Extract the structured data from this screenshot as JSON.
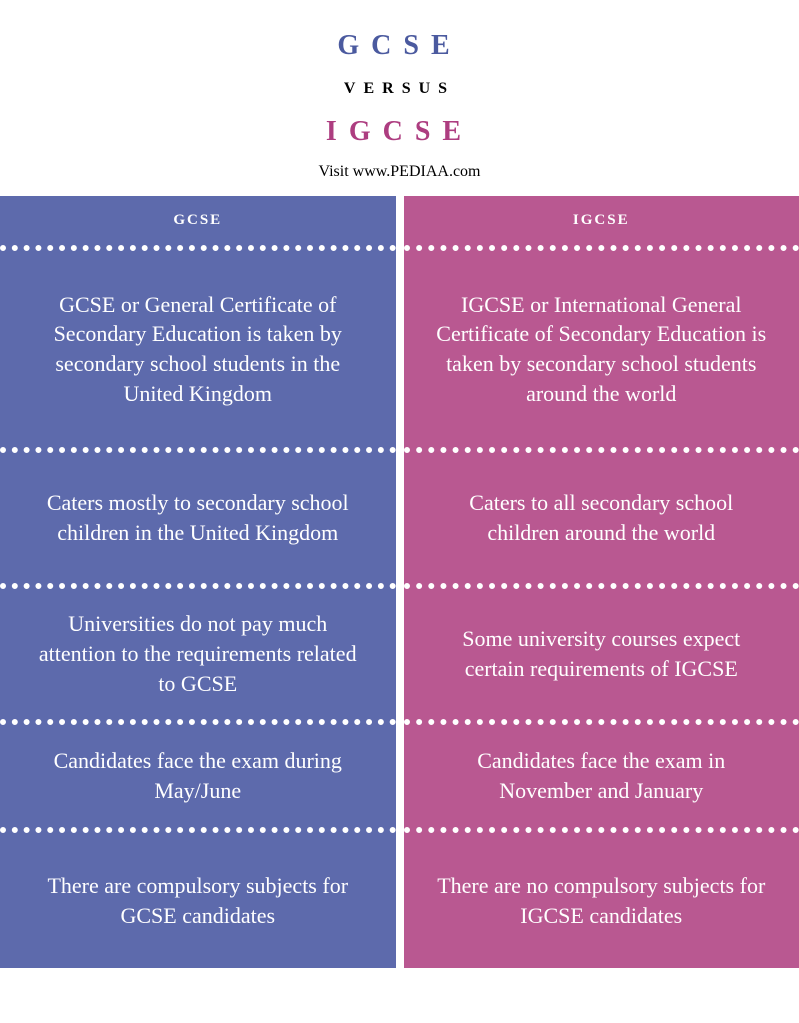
{
  "header": {
    "title_left": "GCSE",
    "versus": "VERSUS",
    "title_right": "IGCSE",
    "visit_text": "Visit www.PEDIAA.com"
  },
  "colors": {
    "left_column": "#5d6aac",
    "right_column": "#b95891",
    "left_title": "#4b5a9f",
    "right_title": "#ad3d80",
    "white": "#ffffff",
    "black": "#000000"
  },
  "columns": {
    "left": {
      "header": "GCSE",
      "cells": [
        "GCSE or General Certificate of Secondary Education is taken by secondary school students in the United Kingdom",
        "Caters mostly to secondary school children in the United Kingdom",
        "Universities do not pay much attention to the requirements related to GCSE",
        "Candidates face the exam during May/June",
        "There are compulsory subjects for GCSE candidates"
      ]
    },
    "right": {
      "header": "IGCSE",
      "cells": [
        "IGCSE or International General Certificate of Secondary Education is taken by secondary school students around the world",
        "Caters to all secondary school children around the world",
        "Some university courses expect certain requirements of IGCSE",
        "Candidates face the exam in November and January",
        "There are no compulsory subjects for IGCSE candidates"
      ]
    }
  }
}
